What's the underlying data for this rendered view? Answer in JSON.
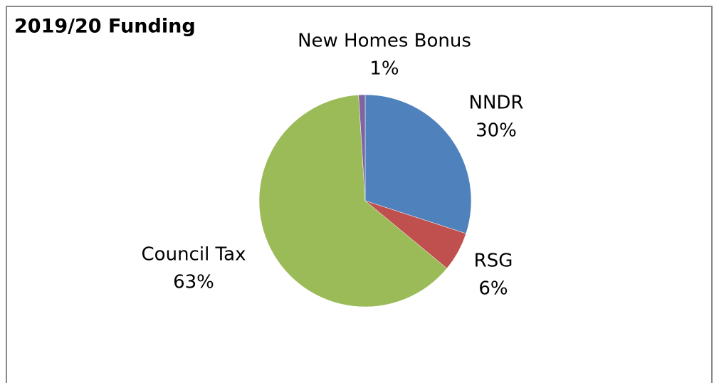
{
  "chart_data": {
    "type": "pie",
    "title": "2019/20 Funding",
    "categories": [
      "NNDR",
      "RSG",
      "Council Tax",
      "New Homes Bonus"
    ],
    "values": [
      30,
      6,
      63,
      1
    ],
    "value_labels": [
      "30%",
      "6%",
      "63%",
      "1%"
    ],
    "colors": [
      "#4f81bd",
      "#c0504d",
      "#9bbb59",
      "#8064a2"
    ]
  }
}
